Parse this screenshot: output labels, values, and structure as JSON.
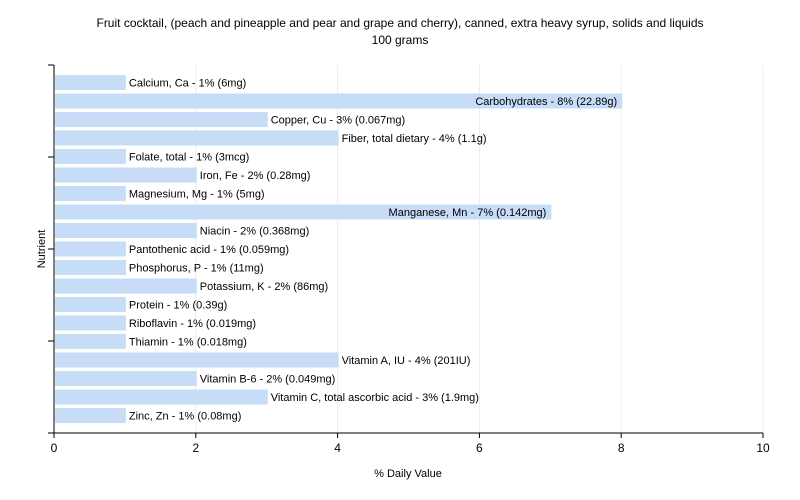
{
  "chart_data": {
    "type": "bar",
    "orientation": "horizontal",
    "title": "Fruit cocktail, (peach and pineapple and pear and grape and cherry), canned, extra heavy syrup, solids and liquids",
    "subtitle": "100 grams",
    "xlabel": "% Daily Value",
    "ylabel": "Nutrient",
    "xlim": [
      0,
      10
    ],
    "xticks": [
      0,
      2,
      4,
      6,
      8,
      10
    ],
    "grid": true,
    "bar_color": "#c6dcf7",
    "categories": [
      "Calcium, Ca",
      "Carbohydrates",
      "Copper, Cu",
      "Fiber, total dietary",
      "Folate, total",
      "Iron, Fe",
      "Magnesium, Mg",
      "Manganese, Mn",
      "Niacin",
      "Pantothenic acid",
      "Phosphorus, P",
      "Potassium, K",
      "Protein",
      "Riboflavin",
      "Thiamin",
      "Vitamin A, IU",
      "Vitamin B-6",
      "Vitamin C, total ascorbic acid",
      "Zinc, Zn"
    ],
    "values": [
      1,
      8,
      3,
      4,
      1,
      2,
      1,
      7,
      2,
      1,
      1,
      2,
      1,
      1,
      1,
      4,
      2,
      3,
      1
    ],
    "labels": [
      "Calcium, Ca - 1% (6mg)",
      "Carbohydrates - 8% (22.89g)",
      "Copper, Cu - 3% (0.067mg)",
      "Fiber, total dietary - 4% (1.1g)",
      "Folate, total - 1% (3mcg)",
      "Iron, Fe - 2% (0.28mg)",
      "Magnesium, Mg - 1% (5mg)",
      "Manganese, Mn - 7% (0.142mg)",
      "Niacin - 2% (0.368mg)",
      "Pantothenic acid - 1% (0.059mg)",
      "Phosphorus, P - 1% (11mg)",
      "Potassium, K - 2% (86mg)",
      "Protein - 1% (0.39g)",
      "Riboflavin - 1% (0.019mg)",
      "Thiamin - 1% (0.018mg)",
      "Vitamin A, IU - 4% (201IU)",
      "Vitamin B-6 - 2% (0.049mg)",
      "Vitamin C, total ascorbic acid - 3% (1.9mg)",
      "Zinc, Zn - 1% (0.08mg)"
    ]
  }
}
